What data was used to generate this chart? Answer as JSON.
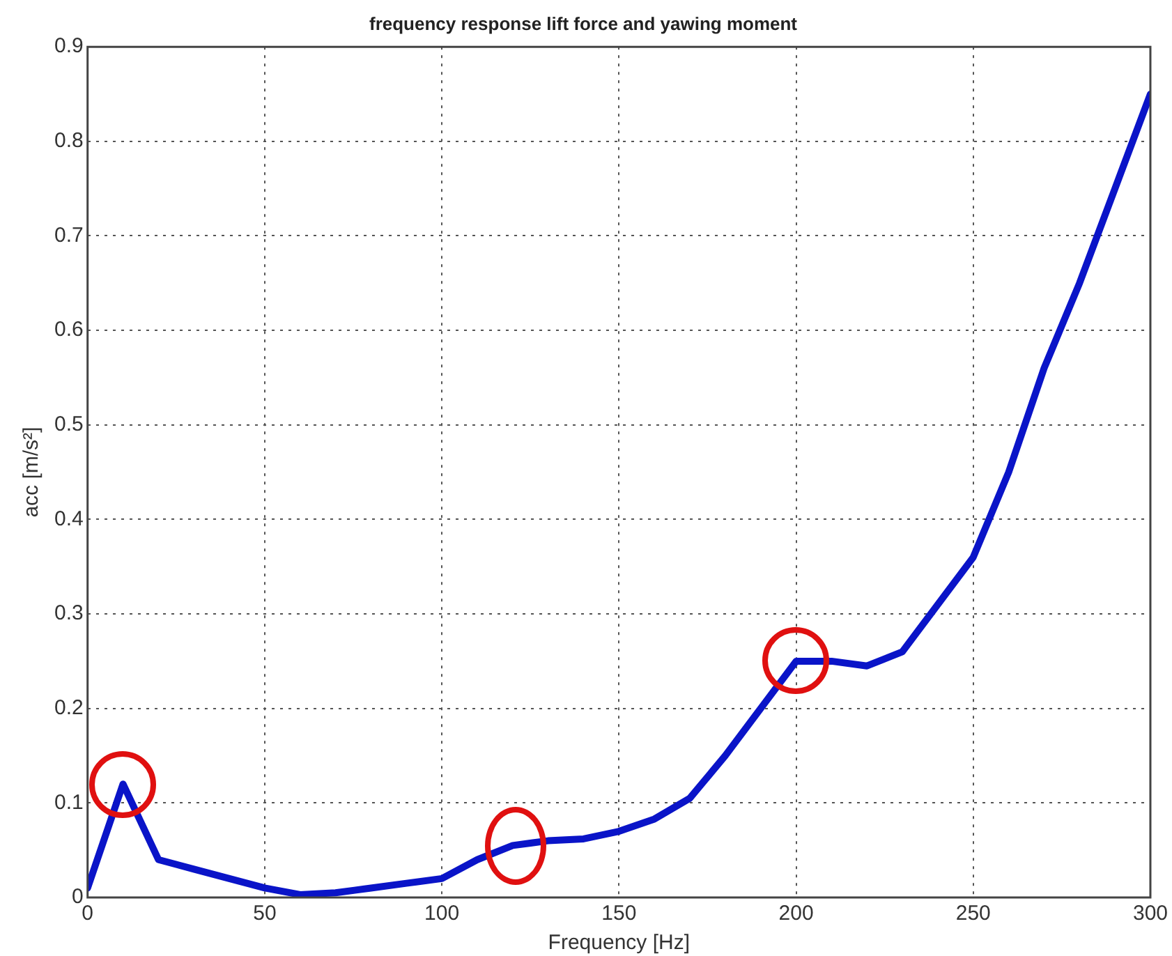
{
  "chart_data": {
    "type": "line",
    "title": "frequency response lift force and yawing moment",
    "xlabel": "Frequency [Hz]",
    "ylabel": "acc [m/s²]",
    "x": [
      0,
      10,
      20,
      30,
      40,
      50,
      60,
      70,
      80,
      90,
      100,
      110,
      120,
      130,
      140,
      150,
      160,
      170,
      180,
      190,
      200,
      210,
      220,
      230,
      240,
      250,
      260,
      270,
      280,
      290,
      300
    ],
    "series": [
      {
        "color": "#0a14c8",
        "values": [
          0.01,
          0.12,
          0.04,
          0.03,
          0.02,
          0.01,
          0.003,
          0.005,
          0.01,
          0.015,
          0.02,
          0.04,
          0.055,
          0.06,
          0.062,
          0.07,
          0.083,
          0.105,
          0.15,
          0.2,
          0.25,
          0.25,
          0.245,
          0.26,
          0.31,
          0.36,
          0.45,
          0.56,
          0.65,
          0.75,
          0.85
        ]
      }
    ],
    "xlim": [
      0,
      300
    ],
    "xticks": [
      0,
      50,
      100,
      150,
      200,
      250,
      300
    ],
    "ylim": [
      0,
      0.9
    ],
    "yticks": [
      0,
      0.1,
      0.2,
      0.3,
      0.4,
      0.5,
      0.6,
      0.7,
      0.8,
      0.9
    ],
    "grid": true,
    "legend": false,
    "marker": "none",
    "line_style": "solid"
  }
}
